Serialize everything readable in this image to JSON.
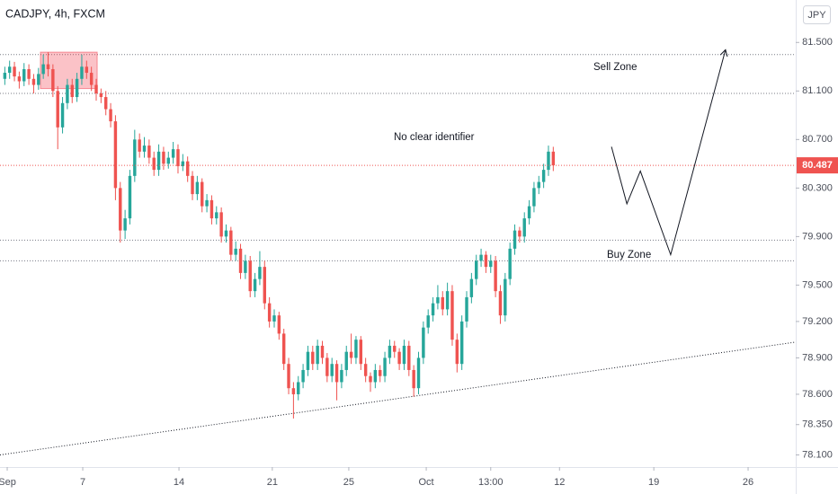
{
  "chart_data": {
    "type": "candlestick",
    "title": "CADJPY, 4h, FXCM",
    "currency": "JPY",
    "up_color": "#26a69a",
    "down_color": "#ef5350",
    "ohlc": [
      [
        81.2,
        81.3,
        81.15,
        81.25
      ],
      [
        81.25,
        81.35,
        81.2,
        81.3
      ],
      [
        81.3,
        81.34,
        81.18,
        81.22
      ],
      [
        81.22,
        81.26,
        81.12,
        81.18
      ],
      [
        81.18,
        81.33,
        81.14,
        81.28
      ],
      [
        81.28,
        81.32,
        81.15,
        81.2
      ],
      [
        81.2,
        81.24,
        81.08,
        81.15
      ],
      [
        81.15,
        81.29,
        81.11,
        81.24
      ],
      [
        81.24,
        81.4,
        81.2,
        81.32
      ],
      [
        81.32,
        81.42,
        81.22,
        81.28
      ],
      [
        81.28,
        81.32,
        81.05,
        81.1
      ],
      [
        81.1,
        81.14,
        80.62,
        80.8
      ],
      [
        80.8,
        81.05,
        80.75,
        81.0
      ],
      [
        81.0,
        81.2,
        80.95,
        81.15
      ],
      [
        81.15,
        81.2,
        81.0,
        81.05
      ],
      [
        81.05,
        81.25,
        81.01,
        81.2
      ],
      [
        81.2,
        81.4,
        81.15,
        81.3
      ],
      [
        81.3,
        81.35,
        81.2,
        81.25
      ],
      [
        81.25,
        81.3,
        81.1,
        81.15
      ],
      [
        81.15,
        81.2,
        81.02,
        81.08
      ],
      [
        81.08,
        81.12,
        81.0,
        81.05
      ],
      [
        81.05,
        81.1,
        80.9,
        80.95
      ],
      [
        80.95,
        81.0,
        80.8,
        80.85
      ],
      [
        80.85,
        80.9,
        80.2,
        80.3
      ],
      [
        80.3,
        80.35,
        79.85,
        79.95
      ],
      [
        79.95,
        80.12,
        79.88,
        80.05
      ],
      [
        80.05,
        80.45,
        80.0,
        80.4
      ],
      [
        80.4,
        80.78,
        80.35,
        80.7
      ],
      [
        80.7,
        80.75,
        80.55,
        80.6
      ],
      [
        80.6,
        80.72,
        80.55,
        80.65
      ],
      [
        80.65,
        80.7,
        80.5,
        80.55
      ],
      [
        80.55,
        80.6,
        80.4,
        80.45
      ],
      [
        80.45,
        80.66,
        80.4,
        80.6
      ],
      [
        80.6,
        80.64,
        80.45,
        80.5
      ],
      [
        80.5,
        80.6,
        80.46,
        80.55
      ],
      [
        80.55,
        80.68,
        80.5,
        80.62
      ],
      [
        80.62,
        80.66,
        80.42,
        80.48
      ],
      [
        80.48,
        80.58,
        80.44,
        80.52
      ],
      [
        80.52,
        80.56,
        80.35,
        80.4
      ],
      [
        80.4,
        80.44,
        80.2,
        80.25
      ],
      [
        80.25,
        80.4,
        80.2,
        80.35
      ],
      [
        80.35,
        80.38,
        80.1,
        80.15
      ],
      [
        80.15,
        80.25,
        80.1,
        80.2
      ],
      [
        80.2,
        80.24,
        80.0,
        80.05
      ],
      [
        80.05,
        80.15,
        80.0,
        80.1
      ],
      [
        80.1,
        80.14,
        79.85,
        79.9
      ],
      [
        79.9,
        80.0,
        79.85,
        79.95
      ],
      [
        79.95,
        79.98,
        79.7,
        79.75
      ],
      [
        79.75,
        79.86,
        79.7,
        79.8
      ],
      [
        79.8,
        79.84,
        79.55,
        79.6
      ],
      [
        79.6,
        79.75,
        79.55,
        79.7
      ],
      [
        79.7,
        79.74,
        79.4,
        79.45
      ],
      [
        79.45,
        79.6,
        79.4,
        79.55
      ],
      [
        79.55,
        79.78,
        79.5,
        79.65
      ],
      [
        79.65,
        79.7,
        79.3,
        79.35
      ],
      [
        79.35,
        79.4,
        79.15,
        79.2
      ],
      [
        79.2,
        79.3,
        79.15,
        79.25
      ],
      [
        79.25,
        79.28,
        79.05,
        79.1
      ],
      [
        79.1,
        79.14,
        78.8,
        78.85
      ],
      [
        78.85,
        78.9,
        78.6,
        78.65
      ],
      [
        78.65,
        78.7,
        78.4,
        78.6
      ],
      [
        78.6,
        78.75,
        78.55,
        78.7
      ],
      [
        78.7,
        78.85,
        78.65,
        78.8
      ],
      [
        78.8,
        79.0,
        78.75,
        78.95
      ],
      [
        78.95,
        79.0,
        78.8,
        78.85
      ],
      [
        78.85,
        79.05,
        78.8,
        79.0
      ],
      [
        79.0,
        79.04,
        78.85,
        78.9
      ],
      [
        78.9,
        78.94,
        78.7,
        78.75
      ],
      [
        78.75,
        78.9,
        78.7,
        78.85
      ],
      [
        78.85,
        78.88,
        78.55,
        78.7
      ],
      [
        78.7,
        78.85,
        78.65,
        78.8
      ],
      [
        78.8,
        79.0,
        78.75,
        78.95
      ],
      [
        78.95,
        79.1,
        78.85,
        78.9
      ],
      [
        78.9,
        79.08,
        78.85,
        79.05
      ],
      [
        79.05,
        79.08,
        78.8,
        78.85
      ],
      [
        78.85,
        78.9,
        78.7,
        78.75
      ],
      [
        78.75,
        78.78,
        78.62,
        78.7
      ],
      [
        78.7,
        78.85,
        78.65,
        78.8
      ],
      [
        78.8,
        78.84,
        78.7,
        78.75
      ],
      [
        78.75,
        78.95,
        78.7,
        78.9
      ],
      [
        78.9,
        79.05,
        78.85,
        79.0
      ],
      [
        79.0,
        79.04,
        78.9,
        78.95
      ],
      [
        78.95,
        78.98,
        78.8,
        78.85
      ],
      [
        78.85,
        79.05,
        78.8,
        79.0
      ],
      [
        79.0,
        79.04,
        78.75,
        78.8
      ],
      [
        78.8,
        78.84,
        78.58,
        78.65
      ],
      [
        78.65,
        78.95,
        78.6,
        78.9
      ],
      [
        78.9,
        79.2,
        78.85,
        79.15
      ],
      [
        79.15,
        79.3,
        79.1,
        79.25
      ],
      [
        79.25,
        79.4,
        79.2,
        79.35
      ],
      [
        79.35,
        79.5,
        79.3,
        79.4
      ],
      [
        79.4,
        79.45,
        79.25,
        79.3
      ],
      [
        79.3,
        79.52,
        79.25,
        79.45
      ],
      [
        79.45,
        79.5,
        79.0,
        79.05
      ],
      [
        79.05,
        79.1,
        78.78,
        78.85
      ],
      [
        78.85,
        79.25,
        78.8,
        79.2
      ],
      [
        79.2,
        79.45,
        79.15,
        79.4
      ],
      [
        79.4,
        79.6,
        79.35,
        79.55
      ],
      [
        79.55,
        79.75,
        79.5,
        79.7
      ],
      [
        79.7,
        79.8,
        79.65,
        79.75
      ],
      [
        79.75,
        79.78,
        79.6,
        79.65
      ],
      [
        79.65,
        79.75,
        79.6,
        79.7
      ],
      [
        79.7,
        79.74,
        79.4,
        79.45
      ],
      [
        79.45,
        79.5,
        79.18,
        79.25
      ],
      [
        79.25,
        79.6,
        79.2,
        79.55
      ],
      [
        79.55,
        79.85,
        79.5,
        79.8
      ],
      [
        79.8,
        80.0,
        79.75,
        79.95
      ],
      [
        79.95,
        79.98,
        79.85,
        79.9
      ],
      [
        79.9,
        80.1,
        79.85,
        80.05
      ],
      [
        80.05,
        80.2,
        80.0,
        80.15
      ],
      [
        80.15,
        80.35,
        80.1,
        80.3
      ],
      [
        80.3,
        80.4,
        80.25,
        80.35
      ],
      [
        80.35,
        80.5,
        80.3,
        80.45
      ],
      [
        80.45,
        80.65,
        80.4,
        80.6
      ],
      [
        80.6,
        80.64,
        80.44,
        80.487
      ]
    ],
    "last_price": 80.487,
    "levels": [
      81.4,
      81.08,
      79.87,
      79.7
    ],
    "zone": {
      "x": [
        7.4,
        19.2
      ],
      "y": [
        81.12,
        81.42
      ]
    },
    "trendline": {
      "x": [
        -1,
        164.4
      ],
      "y": [
        78.1,
        79.03
      ]
    },
    "projection": {
      "x": [
        126.1,
        129.3,
        132.1,
        138.4,
        149.8
      ],
      "y": [
        80.64,
        80.17,
        80.44,
        79.75,
        81.44
      ]
    },
    "annotations": [
      "Sell Zone",
      "No clear identifier",
      "Buy Zone"
    ],
    "xlim": [
      -1,
      164.4
    ],
    "ylim": [
      78.0,
      81.85
    ],
    "xticks": [
      {
        "value": 0.5,
        "label": "Sep"
      },
      {
        "value": 16.2,
        "label": "7"
      },
      {
        "value": 36.2,
        "label": "14"
      },
      {
        "value": 55.6,
        "label": "21"
      },
      {
        "value": 71.5,
        "label": "25"
      },
      {
        "value": 87.6,
        "label": "Oct"
      },
      {
        "value": 101,
        "label": "13:00"
      },
      {
        "value": 115.3,
        "label": "12"
      },
      {
        "value": 134.9,
        "label": "19"
      },
      {
        "value": 154.5,
        "label": "26"
      }
    ],
    "yticks": [
      {
        "value": 81.5,
        "label": "81.500"
      },
      {
        "value": 81.1,
        "label": "81.100"
      },
      {
        "value": 80.7,
        "label": "80.700"
      },
      {
        "value": 80.3,
        "label": "80.300"
      },
      {
        "value": 79.9,
        "label": "79.900"
      },
      {
        "value": 79.5,
        "label": "79.500"
      },
      {
        "value": 79.2,
        "label": "79.200"
      },
      {
        "value": 78.9,
        "label": "78.900"
      },
      {
        "value": 78.6,
        "label": "78.600"
      },
      {
        "value": 78.35,
        "label": "78.350"
      },
      {
        "value": 78.1,
        "label": "78.100"
      }
    ]
  }
}
